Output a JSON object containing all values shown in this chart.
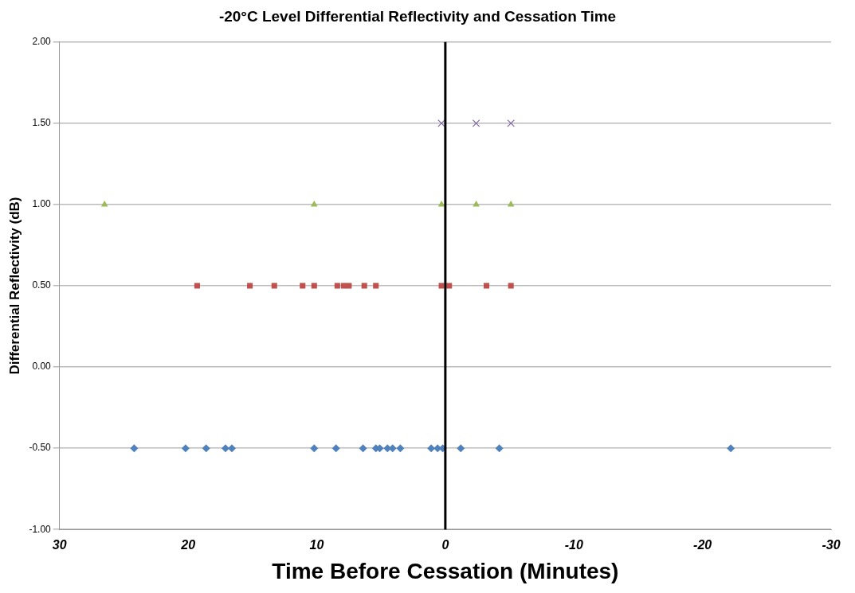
{
  "chart_data": {
    "type": "scatter",
    "title": "-20°C Level Differential Reflectivity and Cessation Time",
    "xlabel": "Time Before Cessation (Minutes)",
    "ylabel": "Differential Reflectivity (dB)",
    "xlim": [
      30,
      -30
    ],
    "xticks": [
      30,
      20,
      10,
      0,
      -10,
      -20,
      -30
    ],
    "ylim": [
      -1,
      2
    ],
    "yticks": [
      {
        "value": -1,
        "label": "-1.00"
      },
      {
        "value": -0.5,
        "label": "-0.50"
      },
      {
        "value": 0,
        "label": "0.00"
      },
      {
        "value": 0.5,
        "label": "0.50"
      },
      {
        "value": 1,
        "label": "1.00"
      },
      {
        "value": 1.5,
        "label": "1.50"
      },
      {
        "value": 2,
        "label": "2.00"
      }
    ],
    "grid": "y",
    "legend": false,
    "ref_lines": [
      {
        "axis": "x",
        "value": 0,
        "color": "#000000"
      }
    ],
    "series": [
      {
        "color": "#4f81bd",
        "marker": "diamond",
        "x": [
          24.2,
          20.2,
          18.6,
          17.1,
          16.6,
          10.2,
          8.5,
          6.4,
          5.4,
          5.1,
          4.5,
          4.1,
          3.5,
          1.1,
          0.6,
          0.2,
          -1.2,
          -4.2,
          -22.2
        ],
        "values": [
          -0.5,
          -0.5,
          -0.5,
          -0.5,
          -0.5,
          -0.5,
          -0.5,
          -0.5,
          -0.5,
          -0.5,
          -0.5,
          -0.5,
          -0.5,
          -0.5,
          -0.5,
          -0.5,
          -0.5,
          -0.5,
          -0.5
        ]
      },
      {
        "color": "#c0504d",
        "marker": "square",
        "x": [
          19.3,
          15.2,
          13.3,
          11.1,
          10.2,
          8.4,
          7.9,
          7.5,
          6.3,
          5.4,
          0.3,
          -0.3,
          -3.2,
          -5.1
        ],
        "values": [
          0.5,
          0.5,
          0.5,
          0.5,
          0.5,
          0.5,
          0.5,
          0.5,
          0.5,
          0.5,
          0.5,
          0.5,
          0.5,
          0.5
        ]
      },
      {
        "color": "#9bbb59",
        "marker": "triangle",
        "x": [
          26.5,
          10.2,
          0.3,
          -2.4,
          -5.1
        ],
        "values": [
          1,
          1,
          1,
          1,
          1
        ]
      },
      {
        "color": "#8064a2",
        "marker": "cross",
        "x": [
          0.3,
          -2.4,
          -5.1
        ],
        "values": [
          1.5,
          1.5,
          1.5
        ]
      }
    ]
  }
}
